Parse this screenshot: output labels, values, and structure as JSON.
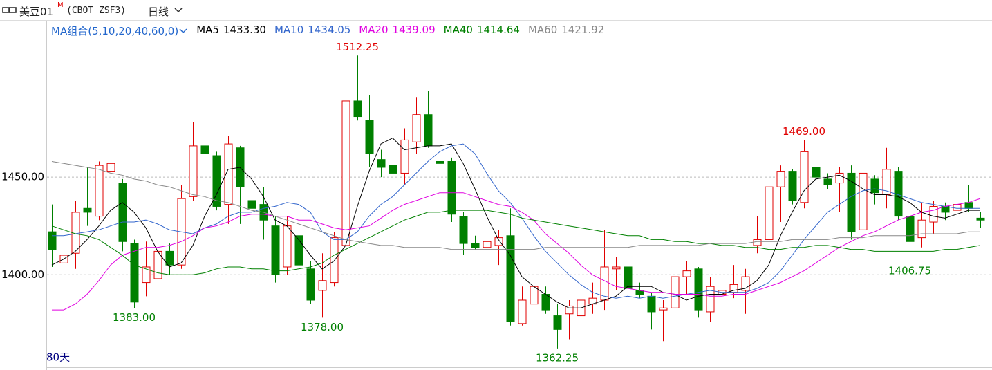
{
  "header": {
    "symbol": "美豆01",
    "symbol_sup": "M",
    "code": "(CBOT ZSF3)",
    "period": "日线"
  },
  "chart_data": {
    "type": "candlestick",
    "legend_title": "MA组合(5,10,20,40,60,0)",
    "days_label": "80天",
    "up_color": "#e00000",
    "down_color": "#008000",
    "ylim": [
      1353,
      1529
    ],
    "yticks": [
      {
        "value": 1400,
        "label": "1400.00"
      },
      {
        "value": 1450,
        "label": "1450.00"
      }
    ],
    "grid": true,
    "open": [
      1422,
      1406,
      1411,
      1434,
      1430,
      1453,
      1447,
      1416,
      1396,
      1398,
      1412,
      1405,
      1440,
      1466,
      1461,
      1436,
      1465,
      1438,
      1436,
      1425,
      1404,
      1420,
      1403,
      1392,
      1396,
      1415,
      1489,
      1479,
      1459,
      1456,
      1452,
      1468,
      1482,
      1458,
      1458,
      1430,
      1416,
      1414,
      1415,
      1420,
      1375,
      1385,
      1390,
      1379,
      1380,
      1379,
      1385,
      1387,
      1403,
      1404,
      1392,
      1389,
      1382,
      1383,
      1399,
      1403,
      1381,
      1390,
      1391,
      1392,
      1415,
      1418,
      1445,
      1453,
      1437,
      1455,
      1449,
      1447,
      1452,
      1423,
      1449,
      1441,
      1453,
      1430,
      1419,
      1427,
      1435,
      1433,
      1437,
      1429
    ],
    "high": [
      1436,
      1418,
      1438,
      1455,
      1458,
      1471,
      1449,
      1418,
      1417,
      1418,
      1416,
      1446,
      1478,
      1480,
      1463,
      1471,
      1466,
      1440,
      1445,
      1430,
      1430,
      1422,
      1407,
      1411,
      1422,
      1491,
      1512.25,
      1492,
      1464,
      1460,
      1475,
      1491,
      1494,
      1467,
      1460,
      1432,
      1420,
      1420,
      1423,
      1434,
      1394,
      1403,
      1394,
      1385,
      1387,
      1396,
      1396,
      1423,
      1409,
      1420,
      1396,
      1391,
      1387,
      1404,
      1407,
      1404,
      1399,
      1409,
      1405,
      1403,
      1430,
      1449,
      1456,
      1454,
      1469,
      1468,
      1452,
      1455,
      1456,
      1459,
      1451,
      1465,
      1455,
      1432,
      1437,
      1438,
      1437,
      1440,
      1446,
      1432
    ],
    "low": [
      1404,
      1400,
      1403,
      1425,
      1428,
      1440,
      1412,
      1383,
      1389,
      1386,
      1400,
      1403,
      1438,
      1455,
      1433,
      1426,
      1426,
      1414,
      1418,
      1396,
      1400,
      1395,
      1385,
      1378,
      1394,
      1413,
      1479,
      1455,
      1450,
      1442,
      1446,
      1462,
      1465,
      1440,
      1427,
      1410,
      1413,
      1397,
      1405,
      1374,
      1374,
      1380,
      1380,
      1362.25,
      1367,
      1378,
      1380,
      1382,
      1392,
      1392,
      1388,
      1372,
      1366,
      1380,
      1390,
      1378,
      1376,
      1388,
      1388,
      1380,
      1411,
      1414,
      1427,
      1436,
      1434,
      1445,
      1444,
      1432,
      1418,
      1419,
      1436,
      1434,
      1428,
      1406.75,
      1414,
      1421,
      1428,
      1427,
      1432,
      1424
    ],
    "close": [
      1413,
      1410,
      1432,
      1432,
      1456,
      1457,
      1417,
      1386,
      1404,
      1412,
      1405,
      1439,
      1466,
      1462,
      1435,
      1467,
      1445,
      1434,
      1428,
      1400,
      1425,
      1405,
      1387,
      1397,
      1419,
      1489,
      1481,
      1462,
      1455,
      1452,
      1469,
      1482,
      1466,
      1457,
      1431,
      1416,
      1414,
      1417,
      1419,
      1376,
      1387,
      1394,
      1382,
      1372,
      1384,
      1387,
      1388,
      1404,
      1404,
      1393,
      1390,
      1381,
      1383,
      1399,
      1402,
      1382,
      1394,
      1392,
      1395,
      1399,
      1418,
      1445,
      1453,
      1438,
      1463,
      1450,
      1446,
      1452,
      1422,
      1452,
      1442,
      1454,
      1430,
      1417,
      1428,
      1435,
      1432,
      1436,
      1434,
      1428
    ],
    "series": [
      {
        "name": "MA5",
        "color": "#000000",
        "legend_value": {
          "value": 1433.3,
          "label": "1433.30"
        },
        "values": [
          1405,
          1408,
          1412,
          1418,
          1425,
          1433,
          1437,
          1432,
          1424,
          1412,
          1404,
          1406,
          1415,
          1430,
          1441,
          1454,
          1455,
          1449,
          1440,
          1428,
          1425,
          1418,
          1410,
          1403,
          1407,
          1415,
          1435,
          1453,
          1467,
          1470,
          1464,
          1465,
          1466,
          1466,
          1467,
          1457,
          1444,
          1430,
          1418,
          1410,
          1399,
          1394,
          1390,
          1386,
          1383,
          1383,
          1385,
          1387,
          1389,
          1394,
          1394,
          1394,
          1391,
          1390,
          1387,
          1389,
          1390,
          1390,
          1392,
          1393,
          1397,
          1405,
          1420,
          1432,
          1443,
          1449,
          1450,
          1451,
          1448,
          1444,
          1441,
          1441,
          1440,
          1437,
          1432,
          1430,
          1429,
          1431,
          1433,
          1433
        ]
      },
      {
        "name": "MA10",
        "color": "#3366cc",
        "legend_value": {
          "value": 1434.05,
          "label": "1434.05"
        },
        "values": [
          1420,
          1420,
          1421,
          1422,
          1423,
          1425,
          1427,
          1427,
          1428,
          1426,
          1423,
          1422,
          1421,
          1424,
          1426,
          1430,
          1432,
          1432,
          1434,
          1435,
          1437,
          1436,
          1432,
          1422,
          1418,
          1418,
          1422,
          1430,
          1436,
          1440,
          1446,
          1452,
          1458,
          1463,
          1466,
          1467,
          1462,
          1452,
          1443,
          1437,
          1429,
          1420,
          1412,
          1406,
          1400,
          1395,
          1391,
          1389,
          1388,
          1389,
          1388,
          1389,
          1388,
          1389,
          1390,
          1391,
          1392,
          1391,
          1391,
          1391,
          1393,
          1396,
          1402,
          1410,
          1418,
          1425,
          1432,
          1436,
          1440,
          1443,
          1444,
          1443,
          1441,
          1439,
          1437,
          1436,
          1435,
          1434,
          1434,
          1434
        ]
      },
      {
        "name": "MA20",
        "color": "#e000e0",
        "legend_value": {
          "value": 1439.09,
          "label": "1439.09"
        },
        "values": [
          1382,
          1382,
          1385,
          1390,
          1397,
          1405,
          1410,
          1412,
          1414,
          1414,
          1415,
          1417,
          1420,
          1424,
          1425,
          1427,
          1430,
          1431,
          1431,
          1430,
          1430,
          1428,
          1428,
          1426,
          1424,
          1423,
          1424,
          1425,
          1429,
          1433,
          1436,
          1438,
          1440,
          1442,
          1442,
          1442,
          1440,
          1438,
          1436,
          1435,
          1432,
          1428,
          1421,
          1416,
          1411,
          1405,
          1400,
          1397,
          1394,
          1393,
          1392,
          1391,
          1391,
          1390,
          1390,
          1390,
          1389,
          1389,
          1390,
          1390,
          1392,
          1394,
          1396,
          1399,
          1402,
          1406,
          1410,
          1414,
          1417,
          1420,
          1422,
          1425,
          1428,
          1430,
          1432,
          1433,
          1435,
          1436,
          1437,
          1439
        ]
      },
      {
        "name": "MA40",
        "color": "#008000",
        "legend_value": {
          "value": 1414.64,
          "label": "1414.64"
        },
        "values": [
          1425,
          1423,
          1421,
          1420,
          1418,
          1414,
          1410,
          1405,
          1403,
          1401,
          1400,
          1400,
          1400,
          1401,
          1403,
          1404,
          1404,
          1403,
          1403,
          1402,
          1402,
          1403,
          1404,
          1406,
          1410,
          1413,
          1416,
          1419,
          1422,
          1425,
          1428,
          1430,
          1432,
          1432,
          1433,
          1433,
          1433,
          1433,
          1432,
          1431,
          1429,
          1428,
          1427,
          1426,
          1425,
          1424,
          1423,
          1422,
          1421,
          1420,
          1420,
          1418,
          1418,
          1417,
          1417,
          1416,
          1416,
          1415,
          1415,
          1414,
          1414,
          1413,
          1413,
          1414,
          1414,
          1415,
          1415,
          1414,
          1413,
          1413,
          1412,
          1412,
          1412,
          1412,
          1412,
          1412,
          1413,
          1413,
          1414,
          1415
        ]
      },
      {
        "name": "MA60",
        "color": "#888888",
        "legend_value": {
          "value": 1421.92,
          "label": "1421.92"
        },
        "values": [
          1458,
          1457,
          1456,
          1455,
          1454,
          1452,
          1451,
          1449,
          1448,
          1446,
          1445,
          1443,
          1441,
          1440,
          1438,
          1437,
          1435,
          1433,
          1432,
          1430,
          1428,
          1426,
          1424,
          1422,
          1420,
          1418,
          1417,
          1416,
          1415,
          1415,
          1414,
          1414,
          1414,
          1414,
          1413,
          1413,
          1413,
          1413,
          1413,
          1413,
          1413,
          1413,
          1414,
          1414,
          1414,
          1414,
          1414,
          1414,
          1414,
          1414,
          1415,
          1415,
          1415,
          1415,
          1415,
          1415,
          1416,
          1416,
          1416,
          1416,
          1417,
          1417,
          1417,
          1418,
          1418,
          1418,
          1418,
          1419,
          1419,
          1419,
          1420,
          1420,
          1420,
          1420,
          1421,
          1421,
          1421,
          1421,
          1422,
          1422
        ]
      }
    ],
    "annotations": [
      {
        "value": 1512.25,
        "label": "1512.25",
        "color": "#e00000"
      },
      {
        "value": 1469,
        "label": "1469.00",
        "color": "#e00000"
      },
      {
        "value": 1383,
        "label": "1383.00",
        "color": "#008000"
      },
      {
        "value": 1378,
        "label": "1378.00",
        "color": "#008000"
      },
      {
        "value": 1362.25,
        "label": "1362.25",
        "color": "#008000"
      },
      {
        "value": 1406.75,
        "label": "1406.75",
        "color": "#008000"
      }
    ]
  }
}
